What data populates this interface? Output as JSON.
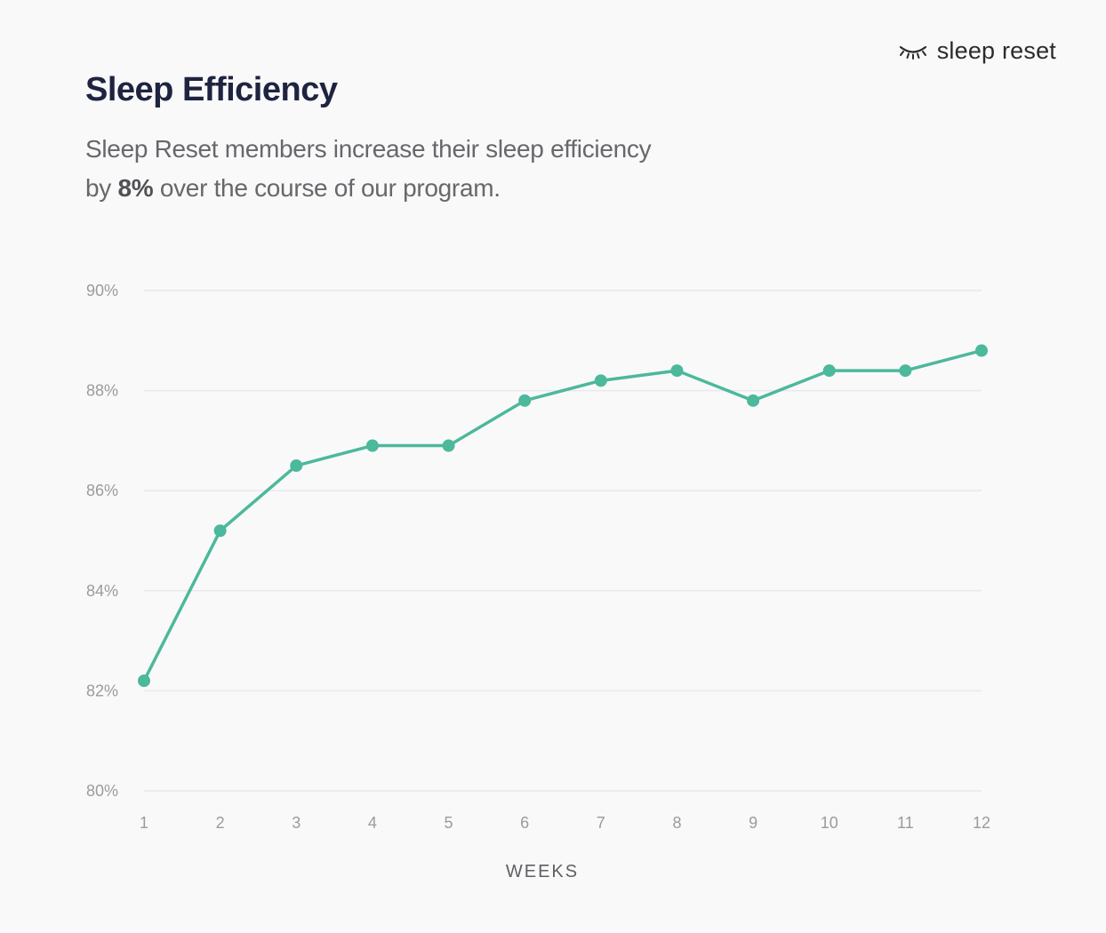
{
  "brand": {
    "name": "sleep reset",
    "icon": "closed-eye-icon"
  },
  "header": {
    "title": "Sleep Efficiency",
    "subtitle_line1": "Sleep Reset members increase their sleep efficiency",
    "subtitle_by": "by",
    "subtitle_highlight": "8%",
    "subtitle_rest": "over the course of our program."
  },
  "colors": {
    "line": "#4cb89c",
    "grid": "#e9e9ec",
    "title": "#1e2440",
    "background": "#f9f9f9"
  },
  "chart_data": {
    "type": "line",
    "title": "Sleep Efficiency",
    "xlabel": "WEEKS",
    "ylabel": "",
    "x": [
      1,
      2,
      3,
      4,
      5,
      6,
      7,
      8,
      9,
      10,
      11,
      12
    ],
    "x_tick_labels": [
      "1",
      "2",
      "3",
      "4",
      "5",
      "6",
      "7",
      "8",
      "9",
      "10",
      "11",
      "12"
    ],
    "y_ticks": [
      80,
      82,
      84,
      86,
      88,
      90
    ],
    "y_tick_labels": [
      "80%",
      "82%",
      "84%",
      "86%",
      "88%",
      "90%"
    ],
    "ylim": [
      80,
      90
    ],
    "grid": true,
    "series": [
      {
        "values": [
          82.2,
          85.2,
          86.5,
          86.9,
          86.9,
          87.8,
          88.2,
          88.4,
          87.8,
          88.4,
          88.4,
          88.8
        ]
      }
    ]
  }
}
